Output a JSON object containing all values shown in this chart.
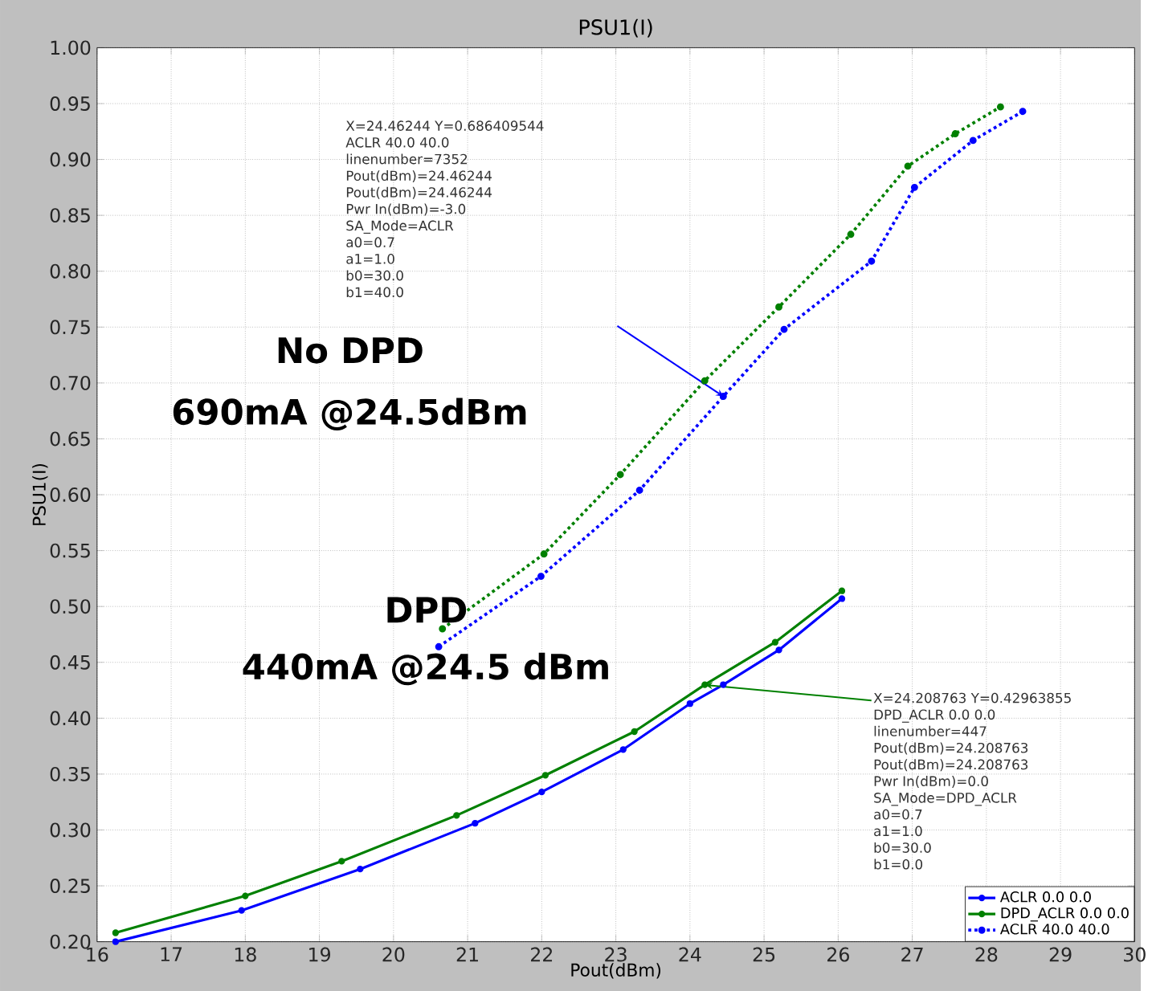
{
  "chart_data": {
    "type": "line",
    "title": "PSU1(I)",
    "xlabel": "Pout(dBm)",
    "ylabel": "PSU1(I)",
    "xlim": [
      16,
      30
    ],
    "xticks": [
      16,
      17,
      18,
      19,
      20,
      21,
      22,
      23,
      24,
      25,
      26,
      27,
      28,
      29,
      30
    ],
    "ylim": [
      0.2,
      1.0
    ],
    "yticks": [
      {
        "value": 0.2,
        "label": "0.20"
      },
      {
        "value": 0.25,
        "label": "0.25"
      },
      {
        "value": 0.3,
        "label": "0.30"
      },
      {
        "value": 0.35,
        "label": "0.35"
      },
      {
        "value": 0.4,
        "label": "0.40"
      },
      {
        "value": 0.45,
        "label": "0.45"
      },
      {
        "value": 0.5,
        "label": "0.50"
      },
      {
        "value": 0.55,
        "label": "0.55"
      },
      {
        "value": 0.6,
        "label": "0.60"
      },
      {
        "value": 0.65,
        "label": "0.65"
      },
      {
        "value": 0.7,
        "label": "0.70"
      },
      {
        "value": 0.75,
        "label": "0.75"
      },
      {
        "value": 0.8,
        "label": "0.80"
      },
      {
        "value": 0.85,
        "label": "0.85"
      },
      {
        "value": 0.9,
        "label": "0.90"
      },
      {
        "value": 0.95,
        "label": "0.95"
      },
      {
        "value": 1.0,
        "label": "1.00"
      }
    ],
    "grid": true,
    "legend": "bottom right",
    "marker": "circle",
    "series": [
      {
        "name": "ACLR 0.0 0.0",
        "color": "#0000ff",
        "line_style": "solid",
        "x": [
          16.25,
          17.95,
          19.55,
          21.1,
          22.0,
          23.1,
          24.0,
          24.45,
          25.2,
          26.05
        ],
        "values": [
          0.2,
          0.228,
          0.265,
          0.306,
          0.334,
          0.372,
          0.413,
          0.43,
          0.461,
          0.507
        ]
      },
      {
        "name": "DPD_ACLR 0.0 0.0",
        "color": "#008000",
        "line_style": "solid",
        "x": [
          16.25,
          18.0,
          19.3,
          20.85,
          22.05,
          23.25,
          24.2,
          25.15,
          26.05
        ],
        "values": [
          0.208,
          0.241,
          0.272,
          0.313,
          0.349,
          0.388,
          0.43,
          0.468,
          0.514
        ]
      },
      {
        "name": "ACLR 40.0 40.0",
        "color": "#0000ff",
        "line_style": "dotted",
        "x": [
          20.61,
          21.99,
          23.32,
          24.45,
          25.27,
          26.45,
          27.03,
          27.82,
          28.49
        ],
        "values": [
          0.464,
          0.527,
          0.604,
          0.688,
          0.748,
          0.809,
          0.875,
          0.917,
          0.943
        ]
      },
      {
        "name": null,
        "color": "#008000",
        "line_style": "dotted",
        "x": [
          20.66,
          22.03,
          23.06,
          24.2,
          25.2,
          26.17,
          26.94,
          27.58,
          28.19
        ],
        "values": [
          0.48,
          0.547,
          0.618,
          0.702,
          0.768,
          0.833,
          0.894,
          0.923,
          0.947
        ]
      }
    ],
    "annotations": [
      "No DPD",
      "690mA @24.5dBm",
      "DPD",
      "440mA @24.5 dBm",
      "X=24.46244    Y=0.686409544",
      "ACLR 40.0 40.0",
      "linenumber=7352",
      "Pout(dBm)=24.46244",
      "Pout(dBm)=24.46244",
      "Pwr In(dBm)=-3.0",
      "SA_Mode=ACLR",
      "a0=0.7",
      "a1=1.0",
      "b0=30.0",
      "b1=40.0",
      {
        "text": "X=24.208763    Y=0.42963855",
        "x": 24.208763,
        "y": 0.42963855
      },
      "DPD_ACLR 0.0 0.0",
      "linenumber=447",
      "Pout(dBm)=24.208763",
      "Pout(dBm)=24.208763",
      "Pwr In(dBm)=0.0",
      "SA_Mode=DPD_ACLR",
      "a0=0.7",
      "a1=1.0",
      "b0=30.0",
      "b1=0.0"
    ]
  }
}
